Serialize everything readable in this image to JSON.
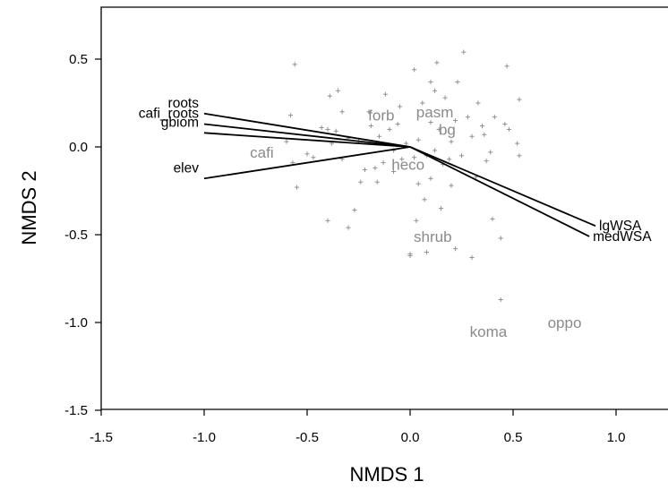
{
  "chart_data": {
    "type": "scatter",
    "subtype": "nmds-biplot",
    "xlabel": "NMDS 1",
    "ylabel": "NMDS 2",
    "xlim": [
      -1.5,
      1.0
    ],
    "ylim": [
      -1.5,
      0.75
    ],
    "x_ticks": [
      "-1.5",
      "-1.0",
      "-0.5",
      "0.0",
      "0.5",
      "1.0"
    ],
    "x_tick_values": [
      -1.5,
      -1.0,
      -0.5,
      0.0,
      0.5,
      1.0
    ],
    "y_ticks": [
      "0.5",
      "0.0",
      "-0.5",
      "-1.0",
      "-1.5"
    ],
    "y_tick_values": [
      0.5,
      0.0,
      -0.5,
      -1.0,
      -1.5
    ],
    "grid": false,
    "colors": {
      "points": "#888888",
      "species_text": "#8a8a8a",
      "vectors": "#000000"
    },
    "site_points": [
      {
        "x": -0.56,
        "y": 0.47
      },
      {
        "x": -0.39,
        "y": 0.29
      },
      {
        "x": -0.35,
        "y": 0.32
      },
      {
        "x": -0.33,
        "y": 0.2
      },
      {
        "x": -0.2,
        "y": 0.2
      },
      {
        "x": -0.12,
        "y": 0.3
      },
      {
        "x": -0.05,
        "y": 0.23
      },
      {
        "x": 0.02,
        "y": 0.44
      },
      {
        "x": 0.06,
        "y": 0.25
      },
      {
        "x": 0.1,
        "y": 0.37
      },
      {
        "x": 0.13,
        "y": 0.48
      },
      {
        "x": 0.12,
        "y": 0.32
      },
      {
        "x": 0.17,
        "y": 0.28
      },
      {
        "x": 0.23,
        "y": 0.37
      },
      {
        "x": 0.26,
        "y": 0.54
      },
      {
        "x": 0.33,
        "y": 0.25
      },
      {
        "x": 0.47,
        "y": 0.46
      },
      {
        "x": 0.53,
        "y": 0.27
      },
      {
        "x": -0.58,
        "y": 0.18
      },
      {
        "x": -0.6,
        "y": 0.03
      },
      {
        "x": -0.57,
        "y": -0.09
      },
      {
        "x": -0.5,
        "y": -0.04
      },
      {
        "x": -0.47,
        "y": -0.06
      },
      {
        "x": -0.43,
        "y": 0.11
      },
      {
        "x": -0.4,
        "y": 0.1
      },
      {
        "x": -0.38,
        "y": 0.02
      },
      {
        "x": -0.36,
        "y": 0.09
      },
      {
        "x": -0.33,
        "y": -0.07
      },
      {
        "x": -0.3,
        "y": 0.05
      },
      {
        "x": -0.25,
        "y": 0.03
      },
      {
        "x": -0.22,
        "y": -0.13
      },
      {
        "x": -0.19,
        "y": 0.12
      },
      {
        "x": -0.17,
        "y": -0.12
      },
      {
        "x": -0.15,
        "y": 0.06
      },
      {
        "x": -0.13,
        "y": -0.09
      },
      {
        "x": -0.1,
        "y": 0.1
      },
      {
        "x": -0.08,
        "y": -0.02
      },
      {
        "x": -0.06,
        "y": 0.13
      },
      {
        "x": -0.04,
        "y": -0.07
      },
      {
        "x": -0.02,
        "y": 0.02
      },
      {
        "x": 0.02,
        "y": -0.06
      },
      {
        "x": 0.04,
        "y": 0.04
      },
      {
        "x": 0.08,
        "y": -0.05
      },
      {
        "x": 0.1,
        "y": 0.14
      },
      {
        "x": 0.12,
        "y": -0.02
      },
      {
        "x": 0.14,
        "y": 0.1
      },
      {
        "x": 0.16,
        "y": -0.1
      },
      {
        "x": 0.2,
        "y": 0.03
      },
      {
        "x": 0.22,
        "y": 0.15
      },
      {
        "x": 0.25,
        "y": -0.05
      },
      {
        "x": 0.28,
        "y": 0.17
      },
      {
        "x": 0.3,
        "y": 0.06
      },
      {
        "x": 0.32,
        "y": -0.17
      },
      {
        "x": 0.35,
        "y": 0.12
      },
      {
        "x": 0.36,
        "y": 0.07
      },
      {
        "x": 0.37,
        "y": -0.08
      },
      {
        "x": 0.39,
        "y": -0.03
      },
      {
        "x": 0.41,
        "y": 0.17
      },
      {
        "x": 0.46,
        "y": 0.13
      },
      {
        "x": 0.48,
        "y": 0.1
      },
      {
        "x": 0.53,
        "y": -0.05
      },
      {
        "x": 0.52,
        "y": 0.02
      },
      {
        "x": -0.55,
        "y": -0.23
      },
      {
        "x": -0.4,
        "y": -0.42
      },
      {
        "x": -0.3,
        "y": -0.46
      },
      {
        "x": -0.27,
        "y": -0.36
      },
      {
        "x": -0.24,
        "y": -0.2
      },
      {
        "x": -0.16,
        "y": -0.2
      },
      {
        "x": 0.03,
        "y": -0.42
      },
      {
        "x": 0.04,
        "y": -0.21
      },
      {
        "x": 0.07,
        "y": -0.3
      },
      {
        "x": 0.1,
        "y": -0.18
      },
      {
        "x": 0.15,
        "y": -0.35
      },
      {
        "x": 0.2,
        "y": -0.22
      },
      {
        "x": 0.22,
        "y": -0.58
      },
      {
        "x": 0.3,
        "y": -0.63
      },
      {
        "x": 0.4,
        "y": -0.41
      },
      {
        "x": 0.44,
        "y": -0.52
      },
      {
        "x": 0.0,
        "y": -0.61
      },
      {
        "x": 0.0,
        "y": -0.62
      },
      {
        "x": 0.08,
        "y": -0.6
      },
      {
        "x": 0.44,
        "y": -0.87
      },
      {
        "x": -0.08,
        "y": -0.14
      },
      {
        "x": 0.19,
        "y": -0.07
      }
    ],
    "vectors": [
      {
        "name": "roots",
        "x": -1.0,
        "y": 0.19
      },
      {
        "name": "cafi_roots",
        "x": -1.0,
        "y": 0.13
      },
      {
        "name": "gbiom",
        "x": -1.0,
        "y": 0.08
      },
      {
        "name": "elev",
        "x": -1.0,
        "y": -0.18
      },
      {
        "name": "lgWSA",
        "x": 0.9,
        "y": -0.45
      },
      {
        "name": "medWSA",
        "x": 0.87,
        "y": -0.51
      }
    ],
    "species": [
      {
        "name": "forb",
        "x": -0.14,
        "y": 0.18
      },
      {
        "name": "pasm",
        "x": 0.12,
        "y": 0.2
      },
      {
        "name": "bg",
        "x": 0.18,
        "y": 0.1
      },
      {
        "name": "cafi",
        "x": -0.72,
        "y": -0.03
      },
      {
        "name": "heco",
        "x": -0.01,
        "y": -0.1
      },
      {
        "name": "shrub",
        "x": 0.11,
        "y": -0.51
      },
      {
        "name": "koma",
        "x": 0.38,
        "y": -1.05
      },
      {
        "name": "oppo",
        "x": 0.75,
        "y": -1.0
      }
    ]
  }
}
